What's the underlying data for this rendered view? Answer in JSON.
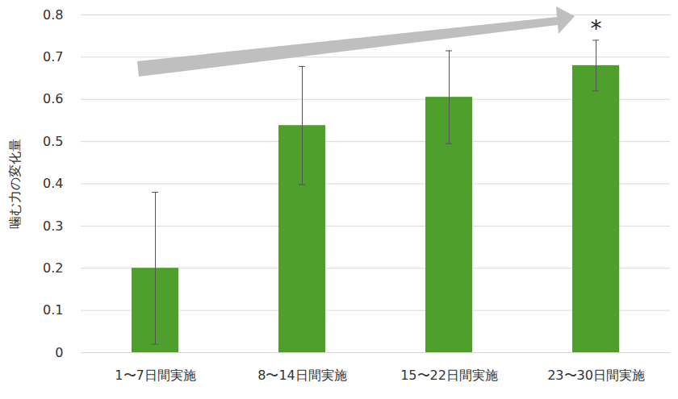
{
  "chart_data": {
    "type": "bar",
    "y_label": "噛む力の変化量",
    "categories": [
      "1〜7日間実施",
      "8〜14日間実施",
      "15〜22日間実施",
      "23〜30日間実施"
    ],
    "values": [
      0.2,
      0.538,
      0.605,
      0.68
    ],
    "errors": [
      0.18,
      0.14,
      0.11,
      0.06
    ],
    "color": "#4e9f2c",
    "ylim": [
      0,
      0.8
    ],
    "yticks": [
      0,
      0.1,
      0.2,
      0.3,
      0.4,
      0.5,
      0.6,
      0.7,
      0.8
    ],
    "grid": true,
    "annotations": [
      {
        "text": "*",
        "category": "23〜30日間実施"
      }
    ]
  }
}
